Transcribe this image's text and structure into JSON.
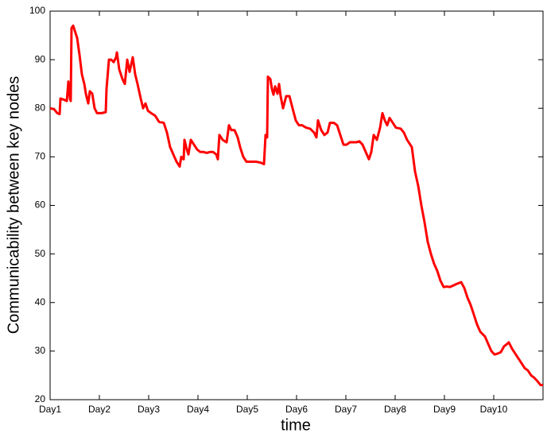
{
  "chart_data": {
    "type": "line",
    "x_label": "time",
    "y_label": "Communicability between key nodes",
    "xlim": [
      1,
      11
    ],
    "ylim": [
      20,
      100
    ],
    "xticks": [
      {
        "value": 1,
        "label": "Day1"
      },
      {
        "value": 2,
        "label": "Day2"
      },
      {
        "value": 3,
        "label": "Day3"
      },
      {
        "value": 4,
        "label": "Day4"
      },
      {
        "value": 5,
        "label": "Day5"
      },
      {
        "value": 6,
        "label": "Day6"
      },
      {
        "value": 7,
        "label": "Day7"
      },
      {
        "value": 8,
        "label": "Day8"
      },
      {
        "value": 9,
        "label": "Day9"
      },
      {
        "value": 10,
        "label": "Day10"
      }
    ],
    "yticks": [
      20,
      30,
      40,
      50,
      60,
      70,
      80,
      90,
      100
    ],
    "grid": false,
    "series": [
      {
        "color": "#ff0000",
        "x": [
          1.0,
          1.081,
          1.145,
          1.194,
          1.21,
          1.274,
          1.339,
          1.371,
          1.403,
          1.419,
          1.435,
          1.468,
          1.516,
          1.548,
          1.597,
          1.645,
          1.694,
          1.726,
          1.774,
          1.806,
          1.855,
          1.903,
          1.952,
          2.048,
          2.129,
          2.145,
          2.194,
          2.242,
          2.29,
          2.339,
          2.355,
          2.403,
          2.468,
          2.516,
          2.565,
          2.613,
          2.677,
          2.726,
          2.774,
          2.839,
          2.887,
          2.935,
          2.984,
          3.048,
          3.129,
          3.21,
          3.306,
          3.371,
          3.435,
          3.5,
          3.565,
          3.629,
          3.661,
          3.71,
          3.726,
          3.774,
          3.806,
          3.855,
          3.919,
          3.984,
          4.048,
          4.113,
          4.177,
          4.242,
          4.306,
          4.371,
          4.403,
          4.435,
          4.5,
          4.581,
          4.629,
          4.677,
          4.742,
          4.806,
          4.855,
          4.919,
          4.984,
          5.081,
          5.177,
          5.274,
          5.339,
          5.371,
          5.403,
          5.419,
          5.468,
          5.5,
          5.532,
          5.565,
          5.613,
          5.645,
          5.677,
          5.726,
          5.79,
          5.855,
          5.919,
          5.984,
          6.048,
          6.113,
          6.194,
          6.274,
          6.355,
          6.403,
          6.435,
          6.5,
          6.565,
          6.629,
          6.677,
          6.758,
          6.823,
          6.887,
          6.952,
          7.016,
          7.081,
          7.21,
          7.274,
          7.339,
          7.403,
          7.468,
          7.516,
          7.565,
          7.629,
          7.694,
          7.742,
          7.79,
          7.839,
          7.887,
          7.952,
          8.016,
          8.113,
          8.177,
          8.242,
          8.339,
          8.403,
          8.468,
          8.532,
          8.597,
          8.661,
          8.726,
          8.79,
          8.855,
          8.919,
          8.984,
          9.048,
          9.113,
          9.177,
          9.242,
          9.339,
          9.403,
          9.468,
          9.532,
          9.597,
          9.661,
          9.726,
          9.823,
          9.887,
          9.952,
          10.016,
          10.081,
          10.145,
          10.21,
          10.274,
          10.306,
          10.371,
          10.435,
          10.5,
          10.565,
          10.629,
          10.694,
          10.758,
          10.823,
          10.887,
          10.952,
          11.0
        ],
        "values": [
          80,
          79.8,
          79,
          78.8,
          82,
          81.8,
          81.5,
          85.5,
          82,
          81.5,
          96.5,
          97,
          95.5,
          94.5,
          91,
          87,
          85,
          83,
          81,
          83.5,
          83,
          80,
          79,
          79,
          79.2,
          84,
          90,
          90,
          89.5,
          90.5,
          91.5,
          88,
          86,
          85,
          90,
          87.5,
          90.5,
          87,
          85,
          82,
          80,
          81,
          79.5,
          79,
          78.5,
          77.2,
          77,
          75,
          72,
          70.5,
          69,
          68,
          70,
          69.5,
          73.5,
          71.5,
          70.5,
          73.5,
          72.5,
          71.5,
          71,
          71,
          70.8,
          71,
          71,
          70.5,
          69.5,
          74.5,
          73.5,
          73,
          76.5,
          75.5,
          75.5,
          74,
          72,
          70,
          69,
          69,
          69,
          68.8,
          68.5,
          74.5,
          74,
          86.5,
          86,
          84,
          82.8,
          84.5,
          83,
          85,
          82.5,
          80,
          82.5,
          82.5,
          80,
          77.5,
          76.5,
          76.5,
          76,
          75.8,
          75,
          74,
          77.5,
          75.5,
          74.5,
          75,
          77,
          77,
          76.5,
          74.5,
          72.5,
          72.5,
          73,
          73,
          73.2,
          72.5,
          71,
          69.5,
          71,
          74.5,
          73.5,
          76,
          79,
          77.5,
          76.5,
          78,
          77,
          76,
          75.8,
          75,
          73.5,
          72,
          67,
          64,
          60,
          56.5,
          52.5,
          50,
          48,
          46.5,
          44.5,
          43.2,
          43.3,
          43.2,
          43.5,
          43.8,
          44.2,
          43,
          41,
          39.5,
          37.5,
          35.5,
          34,
          33,
          31.5,
          30,
          29.3,
          29.5,
          29.8,
          31,
          31.5,
          31.8,
          30.5,
          29.5,
          28.5,
          27.5,
          26.5,
          26,
          25,
          24.5,
          23.8,
          23,
          23
        ]
      }
    ]
  }
}
